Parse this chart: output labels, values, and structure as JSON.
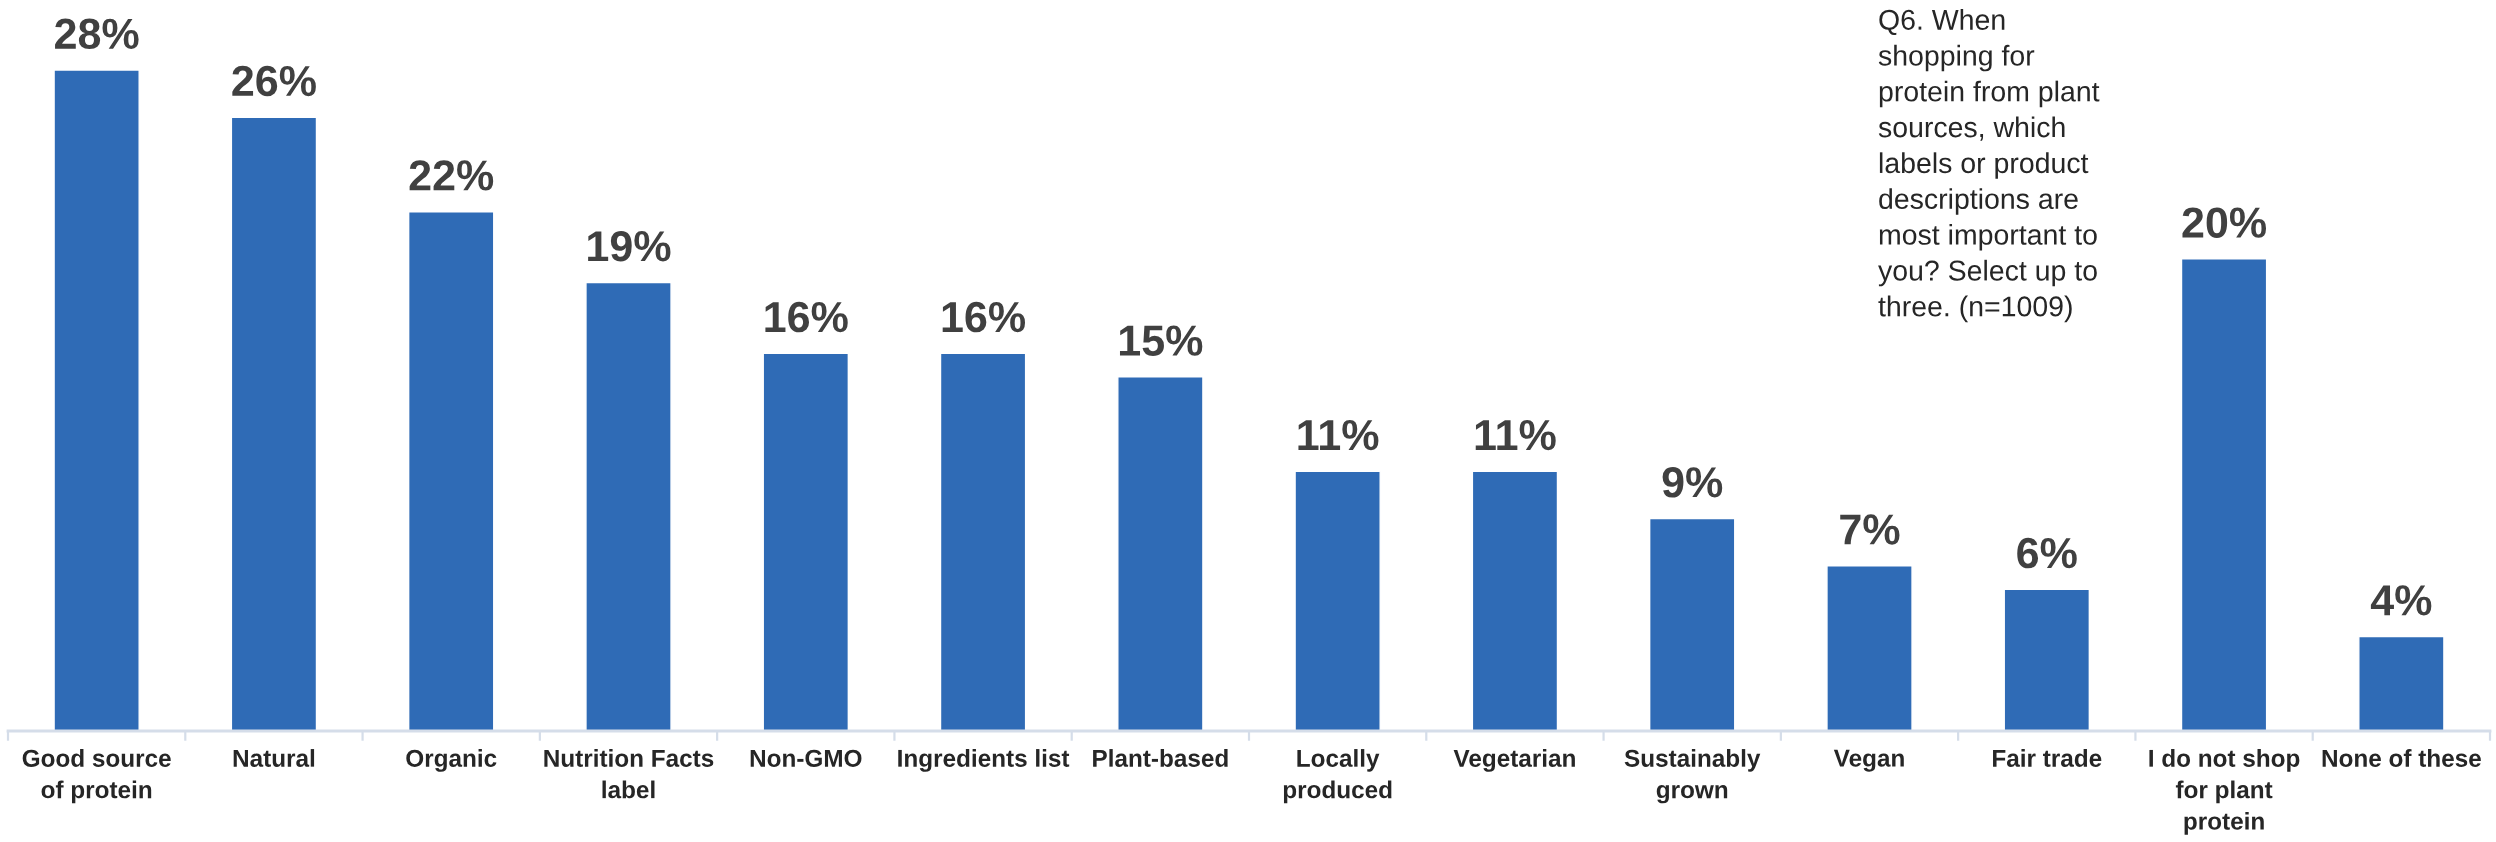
{
  "chart_data": {
    "type": "bar",
    "tick_labels": "x",
    "categories": [
      "Good source of protein",
      "Natural",
      "Organic",
      "Nutrition Facts label",
      "Non-GMO",
      "Ingredients list",
      "Plant-based",
      "Locally produced",
      "Vegetarian",
      "Sustainably grown",
      "Vegan",
      "Fair trade",
      "I do not shop for plant protein",
      "None of these"
    ],
    "values": [
      28,
      26,
      22,
      19,
      16,
      16,
      15,
      11,
      11,
      9,
      7,
      6,
      20,
      4
    ],
    "value_labels": [
      "28%",
      "26%",
      "22%",
      "19%",
      "16%",
      "16%",
      "15%",
      "11%",
      "11%",
      "9%",
      "7%",
      "6%",
      "20%",
      "4%"
    ],
    "color": "#2f6bb6",
    "annotations": [
      "Q6. When shopping for protein from plant sources, which labels or product descriptions are most important to you? Select up to three. (n=1009)"
    ]
  }
}
